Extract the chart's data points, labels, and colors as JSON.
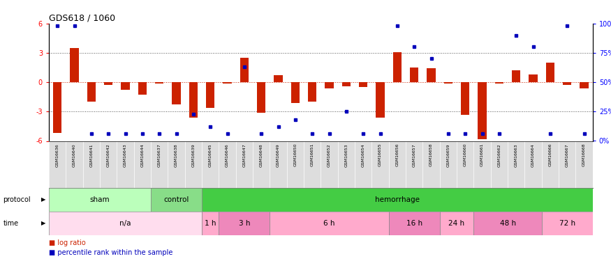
{
  "title": "GDS618 / 1060",
  "samples": [
    "GSM16636",
    "GSM16640",
    "GSM16641",
    "GSM16642",
    "GSM16643",
    "GSM16644",
    "GSM16637",
    "GSM16638",
    "GSM16639",
    "GSM16645",
    "GSM16646",
    "GSM16647",
    "GSM16648",
    "GSM16649",
    "GSM16650",
    "GSM16651",
    "GSM16652",
    "GSM16653",
    "GSM16654",
    "GSM16655",
    "GSM16656",
    "GSM16657",
    "GSM16658",
    "GSM16659",
    "GSM16660",
    "GSM16661",
    "GSM16662",
    "GSM16663",
    "GSM16664",
    "GSM16666",
    "GSM16667",
    "GSM16668"
  ],
  "log_ratio": [
    -5.2,
    3.5,
    -2.0,
    -0.3,
    -0.8,
    -1.3,
    -0.1,
    -2.3,
    -3.6,
    -2.6,
    -0.1,
    2.5,
    -3.1,
    0.7,
    -2.1,
    -2.0,
    -0.6,
    -0.4,
    -0.5,
    -3.6,
    3.1,
    1.5,
    1.4,
    -0.1,
    -3.3,
    -5.8,
    -0.1,
    1.2,
    0.8,
    2.0,
    -0.3,
    -0.6
  ],
  "pct_rank": [
    98,
    98,
    6,
    6,
    6,
    6,
    6,
    6,
    23,
    12,
    6,
    63,
    6,
    12,
    18,
    6,
    6,
    25,
    6,
    6,
    98,
    80,
    70,
    6,
    6,
    6,
    6,
    90,
    80,
    6,
    98,
    6
  ],
  "ylim": [
    -6,
    6
  ],
  "yticks": [
    -6,
    -3,
    0,
    3,
    6
  ],
  "bar_color": "#CC2200",
  "dot_color": "#0000BB",
  "protocol_groups": [
    {
      "label": "sham",
      "start": 0,
      "end": 5,
      "color": "#BBFFBB"
    },
    {
      "label": "control",
      "start": 6,
      "end": 8,
      "color": "#88DD88"
    },
    {
      "label": "hemorrhage",
      "start": 9,
      "end": 31,
      "color": "#44CC44"
    }
  ],
  "time_groups": [
    {
      "label": "n/a",
      "start": 0,
      "end": 8,
      "color": "#FFDDEE"
    },
    {
      "label": "1 h",
      "start": 9,
      "end": 9,
      "color": "#FFAACC"
    },
    {
      "label": "3 h",
      "start": 10,
      "end": 12,
      "color": "#EE88BB"
    },
    {
      "label": "6 h",
      "start": 13,
      "end": 19,
      "color": "#FFAACC"
    },
    {
      "label": "16 h",
      "start": 20,
      "end": 22,
      "color": "#EE88BB"
    },
    {
      "label": "24 h",
      "start": 23,
      "end": 24,
      "color": "#FFAACC"
    },
    {
      "label": "48 h",
      "start": 25,
      "end": 28,
      "color": "#EE88BB"
    },
    {
      "label": "72 h",
      "start": 29,
      "end": 31,
      "color": "#FFAACC"
    }
  ]
}
